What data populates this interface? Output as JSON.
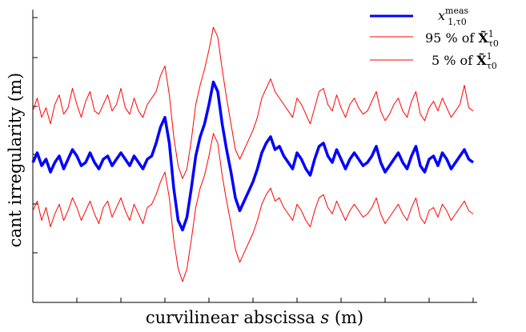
{
  "chart_data": {
    "type": "line",
    "xlabel": "curvilinear abscissa",
    "xlabel_var": "s",
    "xlabel_unit": "(m)",
    "ylabel": "cant irregularity (m)",
    "x_tick_labels_shown": false,
    "y_tick_labels_shown": false,
    "legend_placement": "top-right",
    "series": [
      {
        "name": "x^meas_{1,τ0}",
        "legend_main": "x",
        "legend_sup": "meas",
        "legend_sub": "1,τ0",
        "color": "#0000ff",
        "line_width": "thick",
        "values": [
          0.0,
          0.15,
          -0.05,
          0.05,
          -0.15,
          0.0,
          0.1,
          -0.1,
          0.05,
          0.2,
          0.1,
          -0.05,
          0.0,
          0.15,
          0.0,
          -0.1,
          0.05,
          0.1,
          -0.05,
          0.05,
          0.15,
          0.05,
          -0.05,
          0.1,
          0.0,
          -0.1,
          0.05,
          0.1,
          0.3,
          0.55,
          0.7,
          0.3,
          -0.4,
          -0.9,
          -1.05,
          -0.85,
          -0.4,
          0.1,
          0.4,
          0.6,
          0.9,
          1.25,
          1.1,
          0.6,
          0.2,
          -0.15,
          -0.55,
          -0.75,
          -0.6,
          -0.45,
          -0.3,
          -0.1,
          0.15,
          0.3,
          0.4,
          0.2,
          0.25,
          0.1,
          0.0,
          -0.1,
          0.15,
          0.05,
          -0.1,
          -0.2,
          0.05,
          0.25,
          0.3,
          0.1,
          0.0,
          0.2,
          0.05,
          -0.1,
          0.05,
          0.15,
          0.05,
          -0.05,
          0.0,
          0.1,
          0.25,
          0.0,
          -0.15,
          -0.05,
          0.05,
          0.15,
          0.0,
          -0.1,
          0.1,
          0.25,
          -0.05,
          -0.15,
          0.05,
          0.1,
          -0.05,
          0.15,
          0.05,
          -0.1,
          0.0,
          0.1,
          0.2,
          0.05,
          0.0
        ]
      },
      {
        "name": "95 % of X̃¹_τ0",
        "legend_prefix": "95 % of ",
        "legend_main": "X̃",
        "legend_sup": "1",
        "legend_sub": "τ0",
        "color": "#ff0000",
        "line_width": "thin",
        "values": [
          0.8,
          1.0,
          0.7,
          0.85,
          0.6,
          0.9,
          1.05,
          0.75,
          0.85,
          1.15,
          0.9,
          0.7,
          0.95,
          1.1,
          0.8,
          0.75,
          0.9,
          1.05,
          0.8,
          0.9,
          1.15,
          0.85,
          0.75,
          1.0,
          0.8,
          0.7,
          0.9,
          1.0,
          1.1,
          1.35,
          1.5,
          1.05,
          0.4,
          -0.05,
          -0.25,
          -0.1,
          0.35,
          0.9,
          1.2,
          1.45,
          1.75,
          2.1,
          1.95,
          1.45,
          1.0,
          0.6,
          0.2,
          0.05,
          0.2,
          0.35,
          0.5,
          0.7,
          1.0,
          1.15,
          1.3,
          1.1,
          1.0,
          0.9,
          0.8,
          0.7,
          1.0,
          0.9,
          0.75,
          0.6,
          0.85,
          1.1,
          1.15,
          0.9,
          0.8,
          1.05,
          0.85,
          0.7,
          0.9,
          1.0,
          0.85,
          0.75,
          0.8,
          0.95,
          1.1,
          0.8,
          0.65,
          0.75,
          0.9,
          1.0,
          0.8,
          0.7,
          0.95,
          1.1,
          0.75,
          0.65,
          0.85,
          0.95,
          0.8,
          1.0,
          0.85,
          0.7,
          0.8,
          0.9,
          1.2,
          0.85,
          0.8
        ]
      },
      {
        "name": "5 % of X̃¹_τ0",
        "legend_prefix": "5 % of ",
        "legend_main": "X̃",
        "legend_sup": "1",
        "legend_sub": "τ0",
        "color": "#ff0000",
        "line_width": "thin",
        "values": [
          -0.75,
          -0.6,
          -0.9,
          -0.7,
          -1.0,
          -0.8,
          -0.65,
          -0.9,
          -0.75,
          -0.55,
          -0.7,
          -0.9,
          -0.75,
          -0.6,
          -0.8,
          -0.95,
          -0.7,
          -0.6,
          -0.85,
          -0.7,
          -0.55,
          -0.75,
          -0.9,
          -0.65,
          -0.8,
          -0.95,
          -0.7,
          -0.65,
          -0.5,
          -0.3,
          -0.15,
          -0.55,
          -1.2,
          -1.65,
          -1.85,
          -1.65,
          -1.2,
          -0.7,
          -0.4,
          -0.2,
          0.1,
          0.45,
          0.3,
          -0.2,
          -0.6,
          -0.95,
          -1.35,
          -1.55,
          -1.4,
          -1.25,
          -1.1,
          -0.9,
          -0.65,
          -0.5,
          -0.4,
          -0.6,
          -0.55,
          -0.7,
          -0.8,
          -0.9,
          -0.65,
          -0.75,
          -0.9,
          -1.0,
          -0.75,
          -0.55,
          -0.5,
          -0.7,
          -0.8,
          -0.6,
          -0.75,
          -0.9,
          -0.75,
          -0.65,
          -0.75,
          -0.85,
          -0.8,
          -0.7,
          -0.55,
          -0.8,
          -0.95,
          -0.85,
          -0.75,
          -0.65,
          -0.8,
          -0.9,
          -0.7,
          -0.55,
          -0.85,
          -0.95,
          -0.75,
          -0.7,
          -0.85,
          -0.65,
          -0.75,
          -0.9,
          -0.8,
          -0.7,
          -0.6,
          -0.75,
          -0.8
        ]
      }
    ],
    "ylim": [
      -2.1,
      2.3
    ],
    "xlim": [
      0,
      100
    ]
  }
}
